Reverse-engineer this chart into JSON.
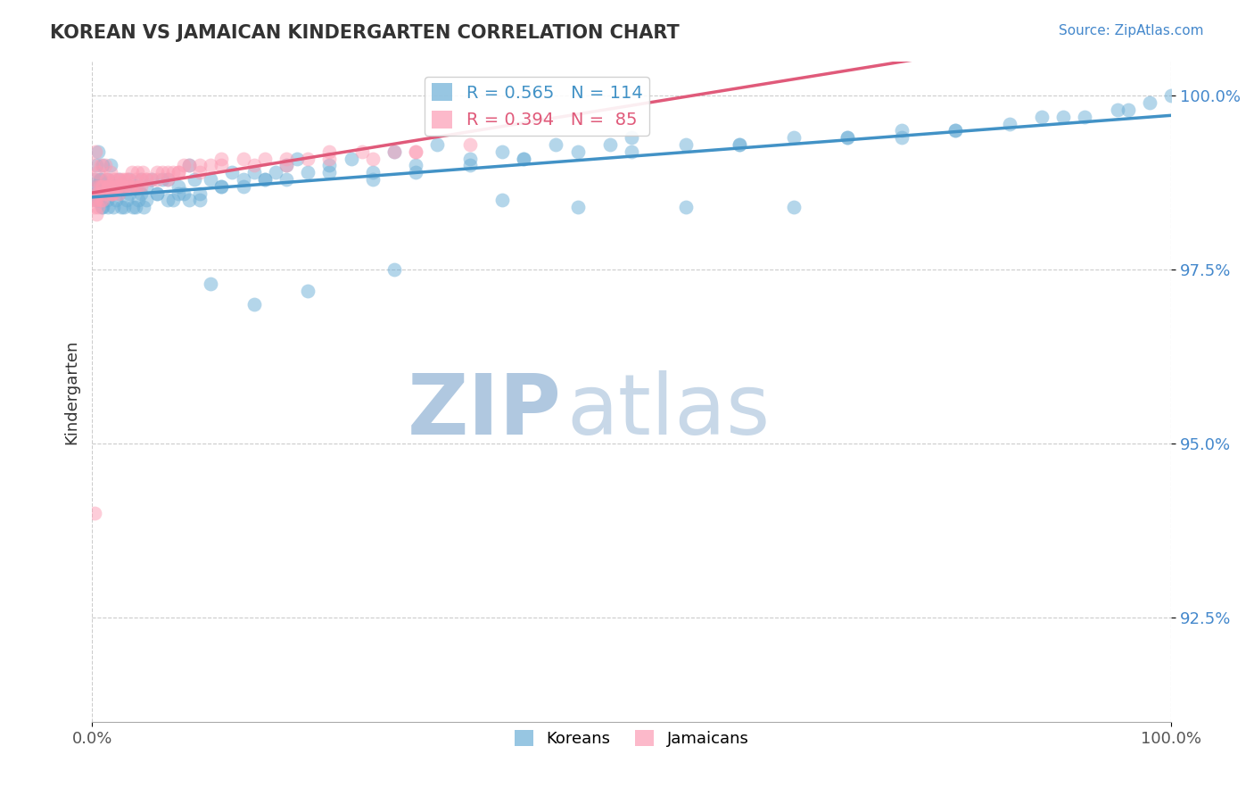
{
  "title": "KOREAN VS JAMAICAN KINDERGARTEN CORRELATION CHART",
  "source_text": "Source: ZipAtlas.com",
  "ylabel": "Kindergarten",
  "xlim": [
    0.0,
    1.0
  ],
  "ylim": [
    0.91,
    1.005
  ],
  "ytick_labels": [
    "92.5%",
    "95.0%",
    "97.5%",
    "100.0%"
  ],
  "ytick_values": [
    0.925,
    0.95,
    0.975,
    1.0
  ],
  "xtick_labels": [
    "0.0%",
    "100.0%"
  ],
  "xtick_values": [
    0.0,
    1.0
  ],
  "korean_color": "#6baed6",
  "jamaican_color": "#fc9cb4",
  "korean_line_color": "#4292c6",
  "jamaican_line_color": "#e05a7a",
  "legend_R_korean": "R = 0.565",
  "legend_N_korean": "N = 114",
  "legend_R_jamaican": "R = 0.394",
  "legend_N_jamaican": "N =  85",
  "watermark_zip": "ZIP",
  "watermark_atlas": "atlas",
  "watermark_color_zip": "#b0c8e0",
  "watermark_color_atlas": "#c8d8e8",
  "background_color": "#ffffff",
  "korean_x": [
    0.002,
    0.003,
    0.004,
    0.005,
    0.006,
    0.007,
    0.008,
    0.009,
    0.01,
    0.012,
    0.014,
    0.015,
    0.017,
    0.02,
    0.022,
    0.025,
    0.027,
    0.03,
    0.032,
    0.035,
    0.038,
    0.04,
    0.043,
    0.045,
    0.048,
    0.05,
    0.055,
    0.06,
    0.065,
    0.07,
    0.075,
    0.08,
    0.085,
    0.09,
    0.095,
    0.1,
    0.11,
    0.12,
    0.13,
    0.14,
    0.15,
    0.16,
    0.17,
    0.18,
    0.19,
    0.2,
    0.22,
    0.24,
    0.26,
    0.28,
    0.3,
    0.32,
    0.35,
    0.38,
    0.4,
    0.43,
    0.45,
    0.48,
    0.5,
    0.55,
    0.6,
    0.65,
    0.7,
    0.75,
    0.8,
    0.85,
    0.9,
    0.95,
    0.98,
    1.0,
    0.003,
    0.005,
    0.007,
    0.01,
    0.012,
    0.015,
    0.018,
    0.02,
    0.025,
    0.03,
    0.035,
    0.04,
    0.045,
    0.05,
    0.06,
    0.07,
    0.08,
    0.09,
    0.1,
    0.12,
    0.14,
    0.16,
    0.18,
    0.22,
    0.26,
    0.3,
    0.35,
    0.4,
    0.5,
    0.6,
    0.7,
    0.75,
    0.8,
    0.88,
    0.92,
    0.96,
    0.65,
    0.55,
    0.45,
    0.38,
    0.28,
    0.2,
    0.15,
    0.11
  ],
  "korean_y": [
    0.988,
    0.985,
    0.99,
    0.987,
    0.992,
    0.986,
    0.988,
    0.984,
    0.99,
    0.987,
    0.985,
    0.988,
    0.99,
    0.987,
    0.985,
    0.988,
    0.984,
    0.987,
    0.985,
    0.988,
    0.984,
    0.987,
    0.985,
    0.988,
    0.984,
    0.987,
    0.988,
    0.986,
    0.988,
    0.988,
    0.985,
    0.987,
    0.986,
    0.99,
    0.988,
    0.985,
    0.988,
    0.987,
    0.989,
    0.988,
    0.989,
    0.988,
    0.989,
    0.99,
    0.991,
    0.989,
    0.99,
    0.991,
    0.988,
    0.992,
    0.989,
    0.993,
    0.991,
    0.992,
    0.991,
    0.993,
    0.992,
    0.993,
    0.994,
    0.993,
    0.993,
    0.994,
    0.994,
    0.995,
    0.995,
    0.996,
    0.997,
    0.998,
    0.999,
    1.0,
    0.987,
    0.985,
    0.988,
    0.984,
    0.986,
    0.984,
    0.986,
    0.984,
    0.986,
    0.984,
    0.986,
    0.984,
    0.986,
    0.985,
    0.986,
    0.985,
    0.986,
    0.985,
    0.986,
    0.987,
    0.987,
    0.988,
    0.988,
    0.989,
    0.989,
    0.99,
    0.99,
    0.991,
    0.992,
    0.993,
    0.994,
    0.994,
    0.995,
    0.997,
    0.997,
    0.998,
    0.984,
    0.984,
    0.984,
    0.985,
    0.975,
    0.972,
    0.97,
    0.973
  ],
  "jamaican_x": [
    0.001,
    0.002,
    0.003,
    0.004,
    0.005,
    0.006,
    0.007,
    0.008,
    0.009,
    0.01,
    0.012,
    0.014,
    0.016,
    0.018,
    0.02,
    0.022,
    0.025,
    0.028,
    0.03,
    0.033,
    0.036,
    0.04,
    0.043,
    0.046,
    0.05,
    0.055,
    0.06,
    0.065,
    0.07,
    0.075,
    0.08,
    0.085,
    0.09,
    0.1,
    0.11,
    0.12,
    0.14,
    0.16,
    0.18,
    0.2,
    0.22,
    0.25,
    0.28,
    0.3,
    0.35,
    0.002,
    0.003,
    0.004,
    0.005,
    0.006,
    0.007,
    0.008,
    0.01,
    0.012,
    0.015,
    0.018,
    0.02,
    0.025,
    0.03,
    0.035,
    0.04,
    0.045,
    0.05,
    0.06,
    0.07,
    0.08,
    0.1,
    0.12,
    0.15,
    0.18,
    0.22,
    0.26,
    0.3,
    0.013,
    0.015,
    0.017,
    0.019,
    0.021,
    0.024,
    0.027,
    0.032,
    0.037,
    0.042,
    0.047,
    0.002
  ],
  "jamaican_y": [
    0.99,
    0.988,
    0.992,
    0.985,
    0.987,
    0.989,
    0.986,
    0.99,
    0.987,
    0.985,
    0.99,
    0.988,
    0.987,
    0.986,
    0.988,
    0.987,
    0.988,
    0.987,
    0.988,
    0.988,
    0.987,
    0.988,
    0.987,
    0.988,
    0.988,
    0.988,
    0.989,
    0.989,
    0.989,
    0.989,
    0.989,
    0.99,
    0.99,
    0.99,
    0.99,
    0.991,
    0.991,
    0.991,
    0.991,
    0.991,
    0.992,
    0.992,
    0.992,
    0.992,
    0.993,
    0.984,
    0.985,
    0.983,
    0.986,
    0.984,
    0.987,
    0.985,
    0.987,
    0.986,
    0.987,
    0.986,
    0.987,
    0.986,
    0.987,
    0.987,
    0.987,
    0.987,
    0.988,
    0.988,
    0.988,
    0.989,
    0.989,
    0.99,
    0.99,
    0.99,
    0.991,
    0.991,
    0.992,
    0.988,
    0.987,
    0.989,
    0.986,
    0.988,
    0.987,
    0.988,
    0.988,
    0.989,
    0.989,
    0.989,
    0.94
  ]
}
